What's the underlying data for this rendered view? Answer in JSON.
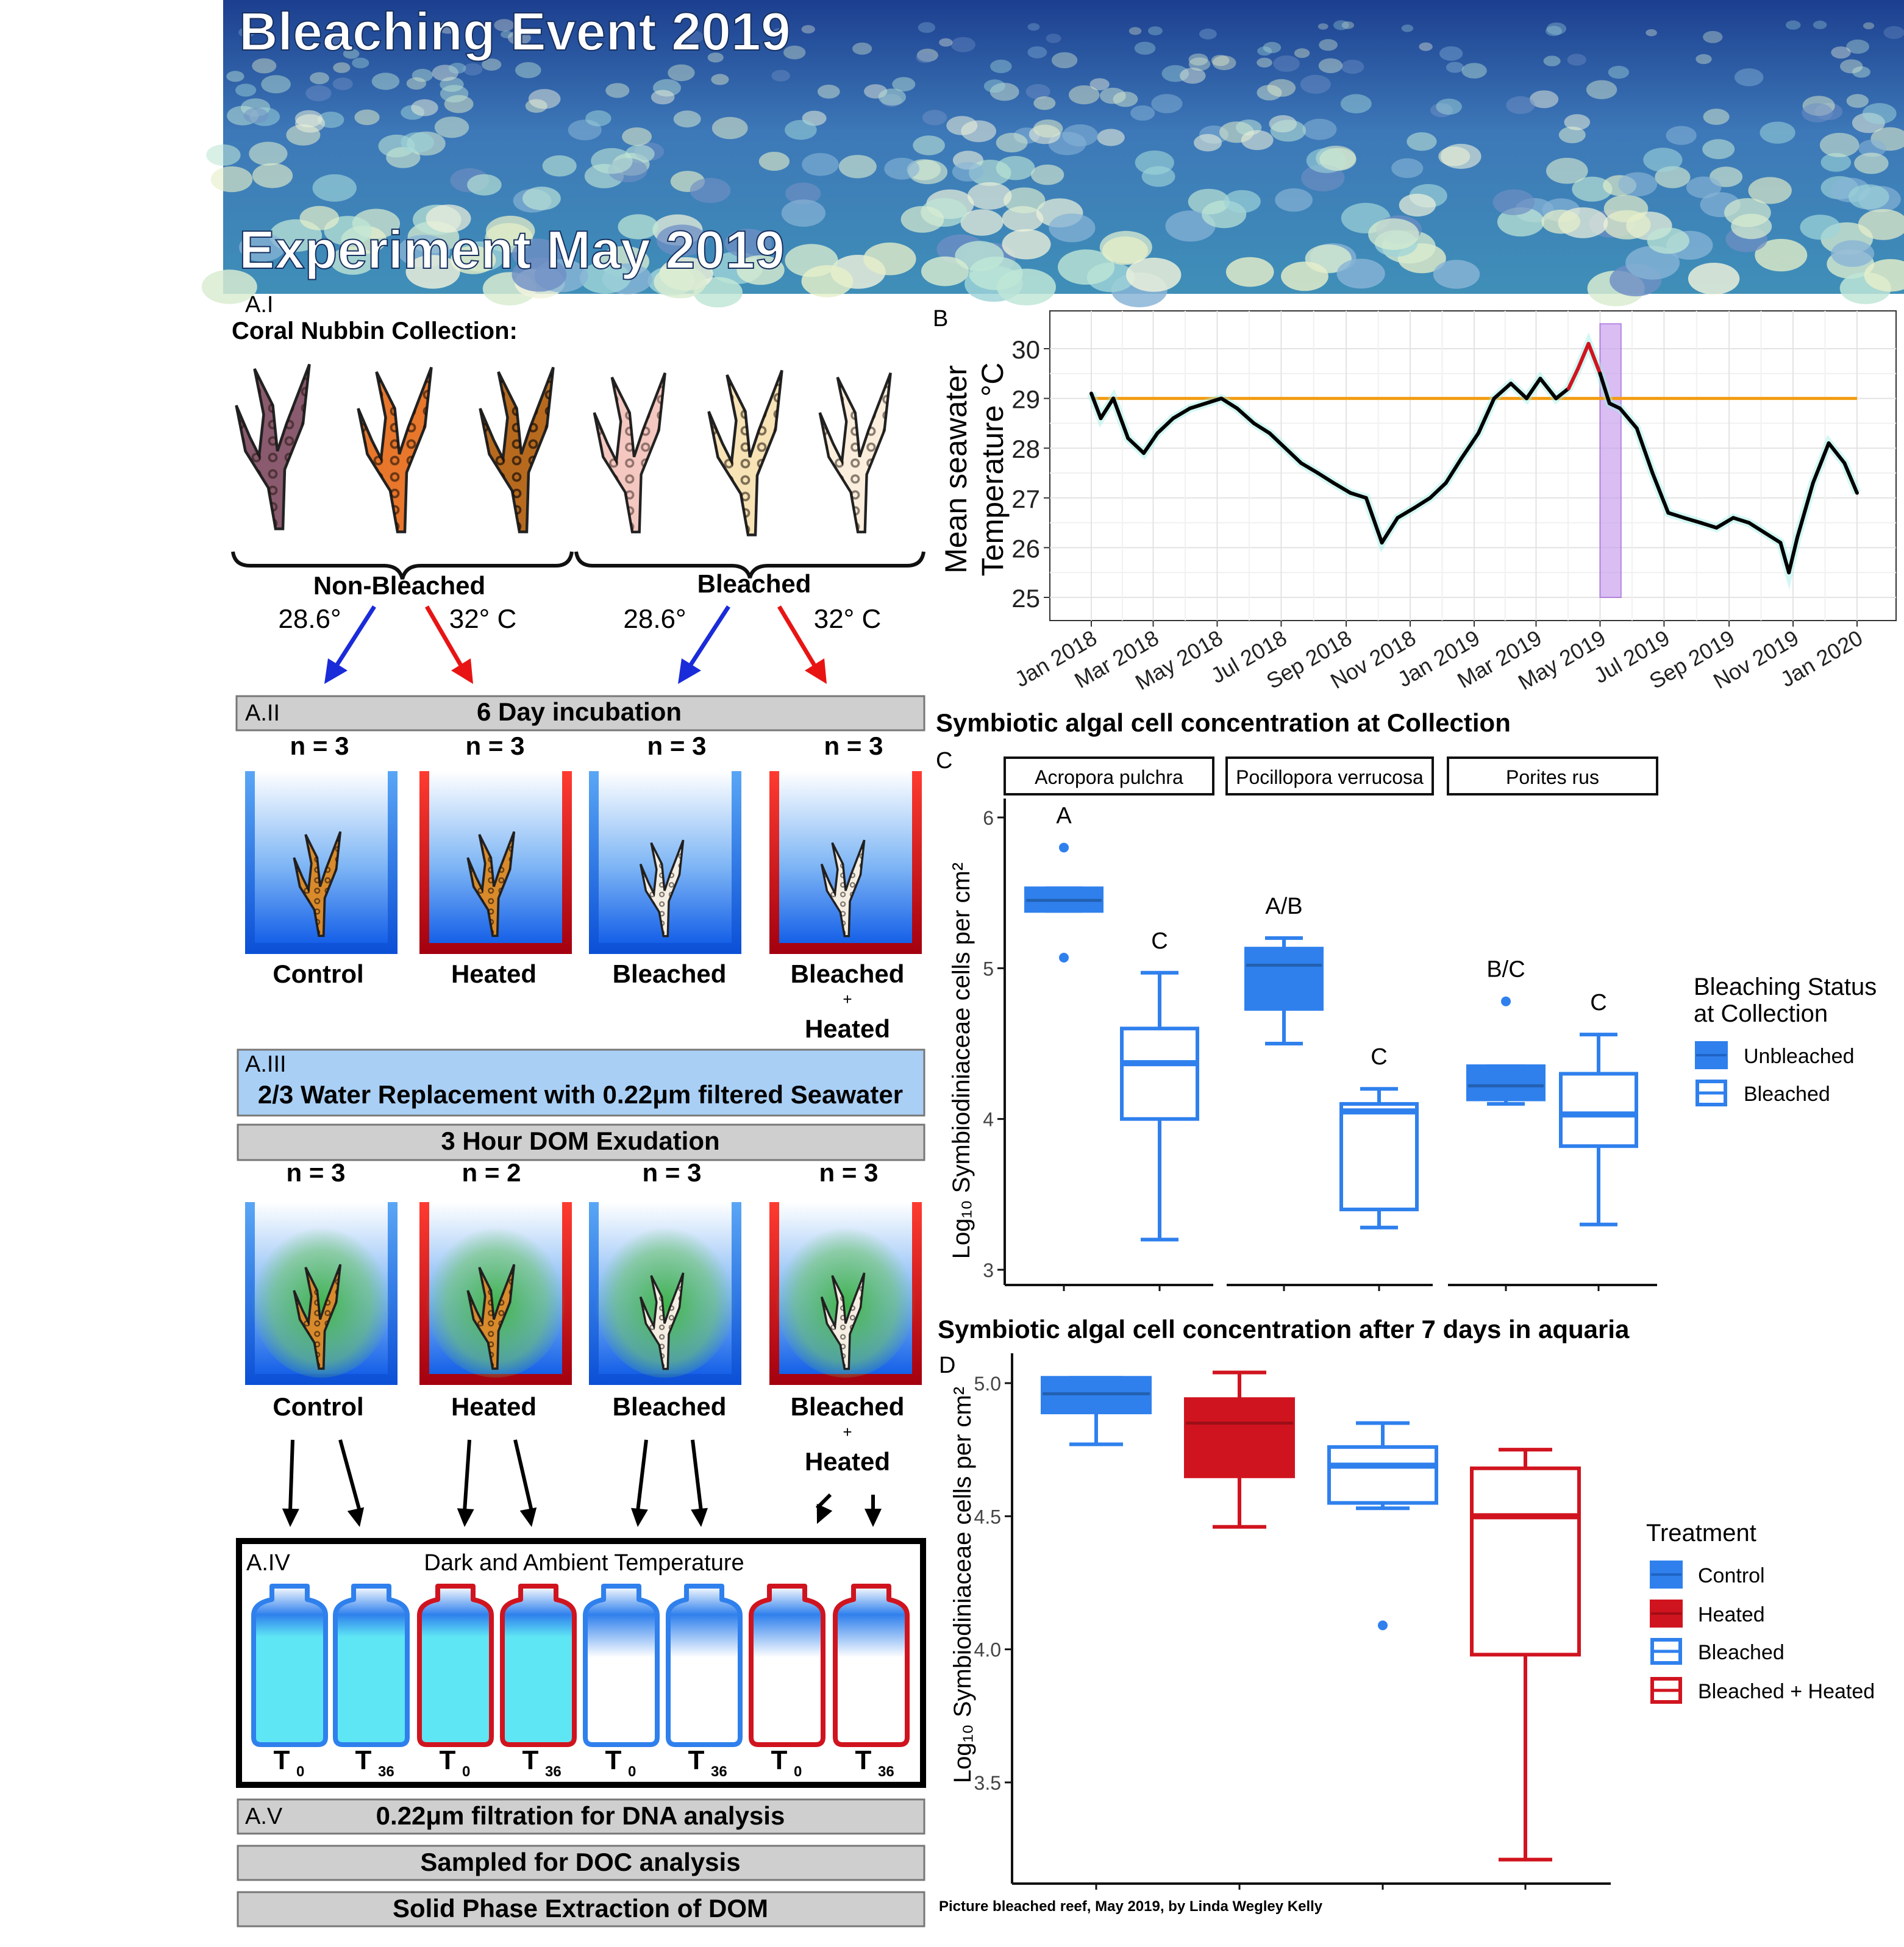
{
  "banner": {
    "title": "Bleaching Event 2019",
    "subtitle": "Experiment May 2019"
  },
  "panel_a": {
    "a1_label": "A.I",
    "collection_title": "Coral Nubbin Collection:",
    "group_nonbleached": "Non-Bleached",
    "group_bleached": "Bleached",
    "temps": [
      "28.6°",
      "32° C",
      "28.6°",
      "32° C"
    ],
    "a2_label": "A.II",
    "a2_title": "6 Day incubation",
    "n_incubation": [
      "n = 3",
      "n = 3",
      "n = 3",
      "n = 3"
    ],
    "a3_label": "A.III",
    "a3_title": "2/3 Water Replacement with 0.22μm filtered Seawater",
    "exudation_title": "3 Hour DOM Exudation",
    "n_exudation": [
      "n = 3",
      "n = 2",
      "n = 3",
      "n = 3"
    ],
    "treatments": [
      "Control",
      "Heated",
      "Bleached",
      "Bleached"
    ],
    "plus": "+",
    "heated": "Heated",
    "a4_label": "A.IV",
    "a4_title": "Dark and Ambient Temperature",
    "t_labels": [
      "T",
      "T",
      "T",
      "T",
      "T",
      "T",
      "T",
      "T"
    ],
    "t_subs": [
      "0",
      "36",
      "0",
      "36",
      "0",
      "36",
      "0",
      "36"
    ],
    "a5_label": "A.V",
    "a5_title": "0.22μm filtration for DNA analysis",
    "doc_title": "Sampled for DOC analysis",
    "spe_title": "Solid Phase Extraction of DOM"
  },
  "panel_b": {
    "label": "B",
    "ylabel_line1": "Mean seawater",
    "ylabel_line2": "Temperature °C",
    "yticks": [
      "25",
      "26",
      "27",
      "28",
      "29",
      "30"
    ],
    "xticks": [
      "Jan 2018",
      "Mar 2018",
      "May 2018",
      "Jul 2018",
      "Sep 2018",
      "Nov 2018",
      "Jan 2019",
      "Mar 2019",
      "May 2019",
      "Jul 2019",
      "Sep 2019",
      "Nov 2019",
      "Jan 2020"
    ]
  },
  "panel_c": {
    "heading": "Symbiotic algal cell concentration at Collection",
    "label": "C",
    "facets": [
      "Acropora pulchra",
      "Pocillopora verrucosa",
      "Porites rus"
    ],
    "ylabel": "Log₁₀ Symbiodiniaceae cells per cm²",
    "yticks": [
      "3",
      "4",
      "5",
      "6"
    ],
    "letters": [
      "A",
      "C",
      "A/B",
      "C",
      "B/C",
      "C"
    ],
    "legend_title_1": "Bleaching Status",
    "legend_title_2": "at Collection",
    "legend_items": [
      "Unbleached",
      "Bleached"
    ]
  },
  "panel_d": {
    "heading": "Symbiotic algal cell concentration after 7 days in aquaria",
    "label": "D",
    "ylabel": "Log₁₀ Symbiodiniaceae cells per cm²",
    "yticks": [
      "3.5",
      "4.0",
      "4.5",
      "5.0"
    ],
    "legend_title": "Treatment",
    "legend_items": [
      "Control",
      "Heated",
      "Bleached",
      "Bleached + Heated"
    ]
  },
  "credit": "Picture bleached reef, May 2019, by Linda Wegley Kelly",
  "colors": {
    "blue": "#2f80ed",
    "red": "#d0141f",
    "orange": "#f39c12",
    "grey_band": "#cfcfcf",
    "light_blue_band": "#a9cff5",
    "bleach_window": "#c9a2ef"
  },
  "chart_data": [
    {
      "type": "line",
      "panel": "B",
      "title": "",
      "xlabel": "",
      "ylabel": "Mean seawater Temperature °C",
      "ylim": [
        25,
        30.5
      ],
      "x_range": [
        "2018-01-01",
        "2020-01-01"
      ],
      "grid": true,
      "reference_line": 29,
      "highlight_window": [
        "2019-05-01",
        "2019-05-21"
      ],
      "series": [
        {
          "x": [
            "2018-01-01",
            "2018-01-10",
            "2018-01-22",
            "2018-02-05",
            "2018-02-20",
            "2018-03-05",
            "2018-03-20",
            "2018-04-05",
            "2018-04-20",
            "2018-05-05",
            "2018-05-20",
            "2018-06-05",
            "2018-06-20",
            "2018-07-05",
            "2018-07-20",
            "2018-08-05",
            "2018-08-20",
            "2018-09-05",
            "2018-09-20",
            "2018-10-05",
            "2018-10-20",
            "2018-11-05",
            "2018-11-20",
            "2018-12-05",
            "2018-12-20",
            "2019-01-05",
            "2019-01-20",
            "2019-02-05",
            "2019-02-20",
            "2019-03-05",
            "2019-03-20",
            "2019-04-01",
            "2019-04-10",
            "2019-04-20",
            "2019-05-01",
            "2019-05-10",
            "2019-05-20",
            "2019-06-05",
            "2019-06-20",
            "2019-07-05",
            "2019-07-20",
            "2019-08-05",
            "2019-08-20",
            "2019-09-05",
            "2019-09-20",
            "2019-10-05",
            "2019-10-20",
            "2019-10-28",
            "2019-11-05",
            "2019-11-20",
            "2019-12-05",
            "2019-12-20",
            "2020-01-01"
          ],
          "values": [
            29.1,
            28.6,
            29.0,
            28.2,
            27.9,
            28.3,
            28.6,
            28.8,
            28.9,
            29.0,
            28.8,
            28.5,
            28.3,
            28.0,
            27.7,
            27.5,
            27.3,
            27.1,
            27.0,
            26.1,
            26.6,
            26.8,
            27.0,
            27.3,
            27.8,
            28.3,
            29.0,
            29.3,
            29.0,
            29.4,
            29.0,
            29.2,
            29.6,
            30.1,
            29.5,
            28.9,
            28.8,
            28.4,
            27.5,
            26.7,
            26.6,
            26.5,
            26.4,
            26.6,
            26.5,
            26.3,
            26.1,
            25.5,
            26.2,
            27.3,
            28.1,
            27.7,
            27.1
          ]
        }
      ]
    },
    {
      "type": "box",
      "panel": "C",
      "title": "Symbiotic algal cell concentration at Collection",
      "ylabel": "Log₁₀ Symbiodiniaceae cells per cm²",
      "ylim": [
        2.95,
        6.3
      ],
      "series": [
        {
          "facet": "Acropora pulchra",
          "status": "Unbleached",
          "min": 5.38,
          "q1": 5.38,
          "median": 5.45,
          "q3": 5.53,
          "max": 5.53,
          "outliers": [
            5.8,
            5.07
          ],
          "letter": "A"
        },
        {
          "facet": "Acropora pulchra",
          "status": "Bleached",
          "min": 3.2,
          "q1": 4.0,
          "median": 4.37,
          "q3": 4.6,
          "max": 4.97,
          "outliers": [],
          "letter": "C"
        },
        {
          "facet": "Pocillopora verrucosa",
          "status": "Unbleached",
          "min": 4.5,
          "q1": 4.73,
          "median": 5.02,
          "q3": 5.13,
          "max": 5.2,
          "outliers": [],
          "letter": "A/B"
        },
        {
          "facet": "Pocillopora verrucosa",
          "status": "Bleached",
          "min": 3.28,
          "q1": 3.4,
          "median": 4.05,
          "q3": 4.1,
          "max": 4.2,
          "outliers": [],
          "letter": "C"
        },
        {
          "facet": "Porites rus",
          "status": "Unbleached",
          "min": 4.1,
          "q1": 4.13,
          "median": 4.22,
          "q3": 4.35,
          "max": 4.35,
          "outliers": [
            4.78
          ],
          "letter": "B/C"
        },
        {
          "facet": "Porites rus",
          "status": "Bleached",
          "min": 3.3,
          "q1": 3.82,
          "median": 4.03,
          "q3": 4.3,
          "max": 4.56,
          "outliers": [],
          "letter": "C"
        }
      ]
    },
    {
      "type": "box",
      "panel": "D",
      "title": "Symbiotic algal cell concentration after 7 days in aquaria",
      "ylabel": "Log₁₀ Symbiodiniaceae cells per cm²",
      "ylim": [
        3.2,
        5.1
      ],
      "series": [
        {
          "name": "Control",
          "min": 4.77,
          "q1": 4.89,
          "median": 4.96,
          "q3": 5.02,
          "max": 5.02,
          "outliers": []
        },
        {
          "name": "Heated",
          "min": 4.46,
          "q1": 4.65,
          "median": 4.85,
          "q3": 4.94,
          "max": 5.04,
          "outliers": []
        },
        {
          "name": "Bleached",
          "min": 4.53,
          "q1": 4.55,
          "median": 4.69,
          "q3": 4.76,
          "max": 4.85,
          "outliers": [
            4.09
          ]
        },
        {
          "name": "Bleached + Heated",
          "min": 3.21,
          "q1": 3.98,
          "median": 4.5,
          "q3": 4.68,
          "max": 4.75,
          "outliers": []
        }
      ]
    }
  ]
}
